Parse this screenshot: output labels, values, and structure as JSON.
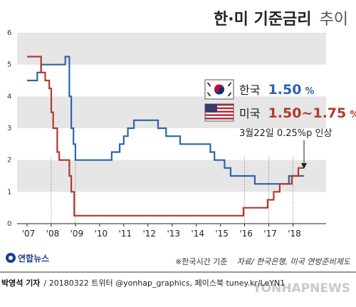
{
  "title": {
    "main": "한·미 기준금리",
    "sub": "추이"
  },
  "colors": {
    "korea": "#2f64a8",
    "usa": "#b03a2e",
    "band": "#e6e6e6",
    "grid_drop": "#777777"
  },
  "legend": {
    "korea": {
      "label": "한국",
      "value": "1.50",
      "unit": "%"
    },
    "usa": {
      "label": "미국",
      "value": "1.50~1.75",
      "unit": "%"
    }
  },
  "annotation": {
    "text": "3월22일 0.25%p 인상"
  },
  "footnote": {
    "note": "※한국시간 기준",
    "source": "자료/ 한국은행, 미국 연방준비제도"
  },
  "credit": {
    "author": "박영석 기자",
    "rest": " / 20180322  트위터 @yonhap_graphics, 페이스북 tuney.kr/LeYN1"
  },
  "logo": {
    "text": "연합뉴스"
  },
  "watermark": "YONHAPNEWS",
  "chart_data": {
    "type": "line",
    "title": "한·미 기준금리 추이",
    "xlabel": "",
    "ylabel": "",
    "x_range": [
      2007.0,
      2018.75
    ],
    "ylim": [
      0,
      6
    ],
    "y_ticks": [
      "0",
      "1",
      "2",
      "3",
      "4",
      "5",
      "6"
    ],
    "x_ticks": [
      {
        "label": "'07",
        "x": 2007.0
      },
      {
        "label": "'08",
        "x": 2008.0
      },
      {
        "label": "'09",
        "x": 2009.0
      },
      {
        "label": "'10",
        "x": 2010.0
      },
      {
        "label": "'11",
        "x": 2011.0
      },
      {
        "label": "'12",
        "x": 2012.0
      },
      {
        "label": "'13",
        "x": 2013.0
      },
      {
        "label": "'14",
        "x": 2014.0
      },
      {
        "label": "'15",
        "x": 2015.0
      },
      {
        "label": "'16",
        "x": 2016.0
      },
      {
        "label": "'17",
        "x": 2017.0
      },
      {
        "label": "'18",
        "x": 2018.0
      }
    ],
    "series": [
      {
        "name": "한국",
        "points": [
          [
            2007.0,
            4.5
          ],
          [
            2007.42,
            4.5
          ],
          [
            2007.42,
            4.75
          ],
          [
            2007.58,
            4.75
          ],
          [
            2007.58,
            5.0
          ],
          [
            2008.58,
            5.0
          ],
          [
            2008.58,
            5.25
          ],
          [
            2008.75,
            5.25
          ],
          [
            2008.75,
            4.0
          ],
          [
            2008.83,
            4.0
          ],
          [
            2008.83,
            3.0
          ],
          [
            2008.92,
            3.0
          ],
          [
            2008.92,
            2.5
          ],
          [
            2009.0,
            2.5
          ],
          [
            2009.0,
            2.0
          ],
          [
            2010.5,
            2.0
          ],
          [
            2010.5,
            2.25
          ],
          [
            2010.83,
            2.25
          ],
          [
            2010.83,
            2.5
          ],
          [
            2011.0,
            2.5
          ],
          [
            2011.0,
            2.75
          ],
          [
            2011.17,
            2.75
          ],
          [
            2011.17,
            3.0
          ],
          [
            2011.42,
            3.0
          ],
          [
            2011.42,
            3.25
          ],
          [
            2012.42,
            3.25
          ],
          [
            2012.42,
            3.0
          ],
          [
            2012.75,
            3.0
          ],
          [
            2012.75,
            2.75
          ],
          [
            2013.33,
            2.75
          ],
          [
            2013.33,
            2.5
          ],
          [
            2014.58,
            2.5
          ],
          [
            2014.58,
            2.25
          ],
          [
            2014.75,
            2.25
          ],
          [
            2014.75,
            2.0
          ],
          [
            2015.17,
            2.0
          ],
          [
            2015.17,
            1.75
          ],
          [
            2015.42,
            1.75
          ],
          [
            2015.42,
            1.5
          ],
          [
            2016.42,
            1.5
          ],
          [
            2016.42,
            1.25
          ],
          [
            2017.83,
            1.25
          ],
          [
            2017.83,
            1.5
          ],
          [
            2018.45,
            1.5
          ]
        ]
      },
      {
        "name": "미국",
        "points": [
          [
            2007.0,
            5.25
          ],
          [
            2007.58,
            5.25
          ],
          [
            2007.58,
            4.75
          ],
          [
            2007.75,
            4.75
          ],
          [
            2007.75,
            4.5
          ],
          [
            2007.92,
            4.5
          ],
          [
            2007.92,
            4.25
          ],
          [
            2008.0,
            4.25
          ],
          [
            2008.0,
            3.5
          ],
          [
            2008.08,
            3.5
          ],
          [
            2008.08,
            3.0
          ],
          [
            2008.25,
            3.0
          ],
          [
            2008.25,
            2.25
          ],
          [
            2008.33,
            2.25
          ],
          [
            2008.33,
            2.0
          ],
          [
            2008.75,
            2.0
          ],
          [
            2008.75,
            1.5
          ],
          [
            2008.83,
            1.5
          ],
          [
            2008.83,
            1.0
          ],
          [
            2008.95,
            1.0
          ],
          [
            2008.95,
            0.25
          ],
          [
            2015.95,
            0.25
          ],
          [
            2015.95,
            0.5
          ],
          [
            2016.95,
            0.5
          ],
          [
            2016.95,
            0.75
          ],
          [
            2017.2,
            0.75
          ],
          [
            2017.2,
            1.0
          ],
          [
            2017.45,
            1.0
          ],
          [
            2017.45,
            1.25
          ],
          [
            2017.95,
            1.25
          ],
          [
            2017.95,
            1.5
          ],
          [
            2018.22,
            1.5
          ],
          [
            2018.22,
            1.75
          ],
          [
            2018.45,
            1.75
          ]
        ]
      }
    ]
  }
}
